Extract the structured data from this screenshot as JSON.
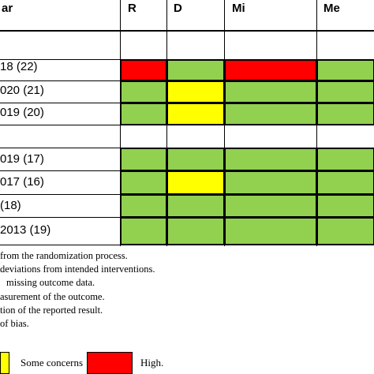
{
  "header": {
    "study_col": "ar",
    "cols": [
      "R",
      "D",
      "Mi",
      "Me"
    ]
  },
  "rows": [
    {
      "label": "",
      "cells": []
    },
    {
      "label": "18 (22)",
      "cells": [
        "red",
        "green",
        "red",
        "green"
      ]
    },
    {
      "label": "020 (21)",
      "cells": [
        "green",
        "yellow",
        "green",
        "green"
      ]
    },
    {
      "label": "019 (20)",
      "cells": [
        "green",
        "yellow",
        "green",
        "green"
      ]
    },
    {
      "label": "",
      "cells": []
    },
    {
      "label": "019 (17)",
      "cells": [
        "green",
        "green",
        "green",
        "green"
      ]
    },
    {
      "label": "017 (16)",
      "cells": [
        "green",
        "yellow",
        "green",
        "green"
      ]
    },
    {
      "label": "(18)",
      "cells": [
        "green",
        "green",
        "green",
        "green"
      ]
    },
    {
      "label": "2013 (19)",
      "cells": [
        "green",
        "green",
        "green",
        "green"
      ]
    }
  ],
  "notes": [
    "from the randomization process.",
    "deviations from intended interventions.",
    "missing outcome data.",
    "asurement of the outcome.",
    "tion of the reported result.",
    "of bias."
  ],
  "key": {
    "some_concerns": "Some concerns",
    "high": "High."
  },
  "colors": {
    "green": "#92d050",
    "yellow": "#ffff00",
    "red": "#ff0000"
  }
}
